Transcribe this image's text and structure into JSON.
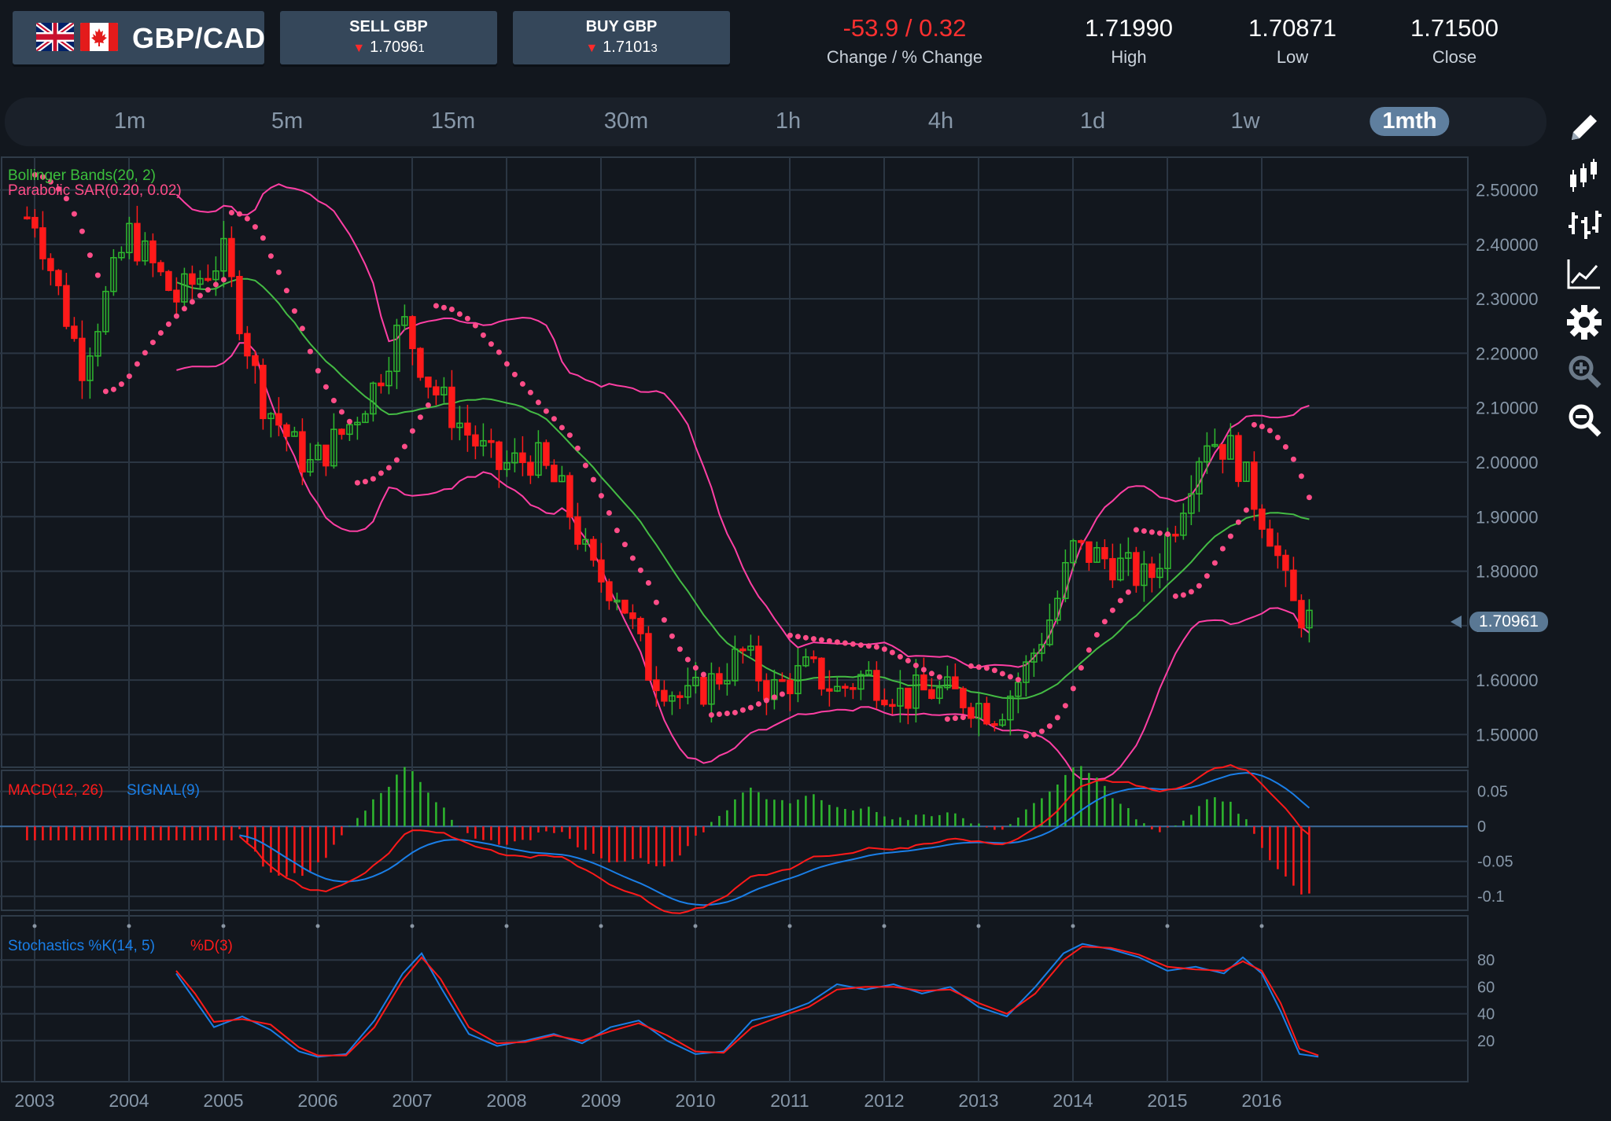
{
  "instrument": {
    "pair": "GBP/CAD",
    "flags": [
      "uk-flag-icon",
      "canada-flag-icon"
    ]
  },
  "trade": {
    "sell": {
      "label": "SELL GBP",
      "price_main": "1.7096",
      "price_pip": "1",
      "direction": "down"
    },
    "buy": {
      "label": "BUY GBP",
      "price_main": "1.7101",
      "price_pip": "3",
      "direction": "down"
    }
  },
  "stats": {
    "change": {
      "value": "-53.9 / 0.32",
      "label": "Change / % Change"
    },
    "high": {
      "value": "1.71990",
      "label": "High"
    },
    "low": {
      "value": "1.70871",
      "label": "Low"
    },
    "close": {
      "value": "1.71500",
      "label": "Close"
    }
  },
  "timeframes": [
    {
      "label": "1m",
      "active": false
    },
    {
      "label": "5m",
      "active": false
    },
    {
      "label": "15m",
      "active": false
    },
    {
      "label": "30m",
      "active": false
    },
    {
      "label": "1h",
      "active": false
    },
    {
      "label": "4h",
      "active": false
    },
    {
      "label": "1d",
      "active": false
    },
    {
      "label": "1w",
      "active": false
    },
    {
      "label": "1mth",
      "active": true
    }
  ],
  "toolbar": {
    "tools": [
      "pencil-icon",
      "candlestick-icon",
      "ohlc-bars-icon",
      "line-chart-icon",
      "settings-gear-icon",
      "zoom-in-icon",
      "zoom-out-icon"
    ]
  },
  "current_price": "1.70961",
  "colors": {
    "background": "#12171e",
    "panel": "#35475a",
    "up_candle": "#2eb82e",
    "down_candle": "#ff1a1a",
    "bollinger_outer": "#ff3fa4",
    "bollinger_mid": "#44bb44",
    "sar": "#ff4d88",
    "macd": "#ff1a1a",
    "signal": "#1a7ee6",
    "stoch_k": "#1a7ee6",
    "stoch_d": "#ff1a1a"
  },
  "chart_data": {
    "type": "candlestick",
    "symbol": "GBP/CAD",
    "interval": "1mth",
    "x_axis_labels": [
      "2003",
      "2004",
      "2005",
      "2006",
      "2007",
      "2008",
      "2009",
      "2010",
      "2011",
      "2012",
      "2013",
      "2014",
      "2015",
      "2016"
    ],
    "price_axis": {
      "ticks": [
        "2.50000",
        "2.40000",
        "2.30000",
        "2.20000",
        "2.10000",
        "2.00000",
        "1.90000",
        "1.80000",
        "1.70000",
        "1.60000",
        "1.50000"
      ],
      "range": [
        1.44,
        2.56
      ]
    },
    "indicators": {
      "bollinger": {
        "label": "Bollinger Bands(20, 2)"
      },
      "sar": {
        "label": "Parabolic SAR(0.20, 0.02)"
      }
    },
    "year_close_anchors": {
      "x": [
        2003.0,
        2003.5,
        2004.0,
        2004.5,
        2005.0,
        2005.4,
        2005.9,
        2006.3,
        2006.6,
        2006.9,
        2007.2,
        2007.6,
        2007.9,
        2008.3,
        2008.6,
        2008.9,
        2009.2,
        2009.5,
        2009.9,
        2010.2,
        2010.5,
        2010.8,
        2011.2,
        2011.5,
        2011.8,
        2012.2,
        2012.5,
        2012.8,
        2013.2,
        2013.5,
        2013.8,
        2014.0,
        2014.4,
        2014.8,
        2015.1,
        2015.4,
        2015.7,
        2015.9,
        2016.1,
        2016.3,
        2016.5
      ],
      "close": [
        2.45,
        2.18,
        2.42,
        2.3,
        2.38,
        2.12,
        1.99,
        2.06,
        2.14,
        2.26,
        2.14,
        2.05,
        1.99,
        2.01,
        1.94,
        1.8,
        1.76,
        1.62,
        1.56,
        1.6,
        1.65,
        1.58,
        1.62,
        1.58,
        1.61,
        1.57,
        1.58,
        1.57,
        1.54,
        1.62,
        1.73,
        1.84,
        1.82,
        1.78,
        1.9,
        2.05,
        2.02,
        1.94,
        1.87,
        1.74,
        1.71
      ]
    },
    "macd": {
      "label_macd": "MACD(12, 26)",
      "label_signal": "SIGNAL(9)",
      "axis_ticks": [
        "0.05",
        "0",
        "-0.05",
        "-0.1"
      ],
      "range": [
        -0.12,
        0.08
      ]
    },
    "stochastics": {
      "label_k": "Stochastics %K(14, 5)",
      "label_d": "%D(3)",
      "axis_ticks": [
        "80",
        "60",
        "40",
        "20"
      ],
      "range": [
        0,
        100
      ],
      "k_points": {
        "x": [
          2004.5,
          2004.7,
          2004.9,
          2005.2,
          2005.5,
          2005.8,
          2006.0,
          2006.3,
          2006.6,
          2006.9,
          2007.1,
          2007.3,
          2007.6,
          2007.9,
          2008.2,
          2008.5,
          2008.8,
          2009.1,
          2009.4,
          2009.7,
          2010.0,
          2010.3,
          2010.6,
          2010.9,
          2011.2,
          2011.5,
          2011.8,
          2012.1,
          2012.4,
          2012.7,
          2013.0,
          2013.3,
          2013.6,
          2013.9,
          2014.1,
          2014.4,
          2014.7,
          2015.0,
          2015.3,
          2015.6,
          2015.8,
          2016.0,
          2016.2,
          2016.4,
          2016.6
        ],
        "y": [
          70,
          50,
          30,
          38,
          28,
          12,
          8,
          10,
          35,
          70,
          85,
          60,
          25,
          16,
          20,
          25,
          18,
          30,
          35,
          20,
          10,
          12,
          35,
          40,
          48,
          62,
          58,
          62,
          55,
          60,
          45,
          38,
          60,
          85,
          92,
          88,
          82,
          72,
          75,
          70,
          82,
          70,
          42,
          10,
          8
        ]
      },
      "d_points": {
        "x": [
          2004.5,
          2004.7,
          2004.9,
          2005.2,
          2005.5,
          2005.8,
          2006.0,
          2006.3,
          2006.6,
          2006.9,
          2007.1,
          2007.3,
          2007.6,
          2007.9,
          2008.2,
          2008.5,
          2008.8,
          2009.1,
          2009.4,
          2009.7,
          2010.0,
          2010.3,
          2010.6,
          2010.9,
          2011.2,
          2011.5,
          2011.8,
          2012.1,
          2012.4,
          2012.7,
          2013.0,
          2013.3,
          2013.6,
          2013.9,
          2014.1,
          2014.4,
          2014.7,
          2015.0,
          2015.3,
          2015.6,
          2015.8,
          2016.0,
          2016.2,
          2016.4,
          2016.6
        ],
        "y": [
          72,
          55,
          34,
          36,
          32,
          15,
          9,
          9,
          30,
          65,
          82,
          66,
          30,
          18,
          19,
          24,
          20,
          27,
          33,
          24,
          12,
          11,
          30,
          38,
          45,
          58,
          60,
          60,
          57,
          58,
          48,
          40,
          55,
          80,
          90,
          89,
          84,
          75,
          73,
          72,
          79,
          72,
          48,
          14,
          9
        ]
      }
    }
  }
}
